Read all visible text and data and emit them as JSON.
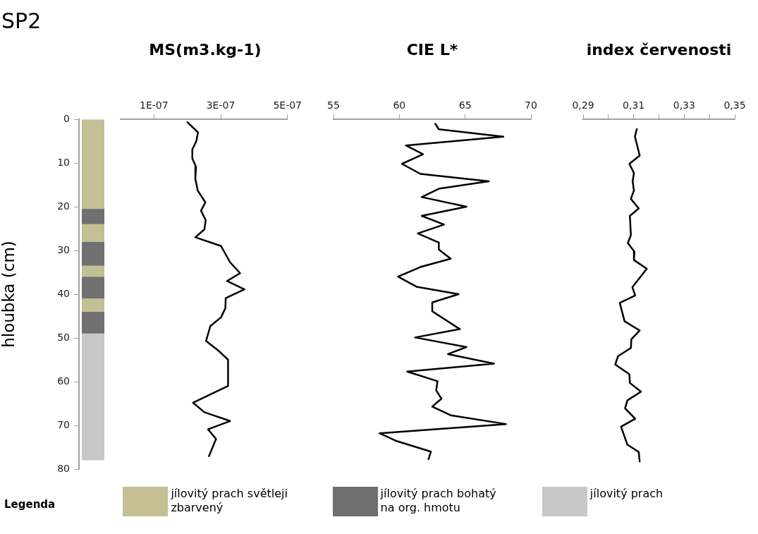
{
  "chart_data": [
    {
      "type": "bar",
      "title": "SP2",
      "ylabel": "hloubka (cm)",
      "categories": [
        null
      ],
      "stacked": true,
      "ylim": [
        80,
        0
      ],
      "yticks": [
        0,
        10,
        20,
        30,
        40,
        50,
        60,
        70,
        80
      ],
      "tick_labels": "y",
      "legend": "bottom",
      "legend_title": "Legenda",
      "series": [
        {
          "name": "jílovitý prach světleji zbarvený",
          "color": "#c4bf94",
          "values": [
            20.5
          ]
        },
        {
          "name": "jílovitý prach bohatý na org. hmotu",
          "color": "#707070",
          "values": [
            3.5
          ]
        },
        {
          "color": "#c4bf94",
          "values": [
            4
          ]
        },
        {
          "color": "#707070",
          "values": [
            5.5
          ]
        },
        {
          "color": "#c4bf94",
          "values": [
            2.5
          ]
        },
        {
          "color": "#707070",
          "values": [
            5
          ]
        },
        {
          "color": "#c4bf94",
          "values": [
            3
          ]
        },
        {
          "color": "#707070",
          "values": [
            5
          ]
        },
        {
          "name": "jílovitý prach",
          "color": "#c8c8c8",
          "values": [
            29
          ]
        }
      ]
    },
    {
      "type": "line",
      "title": "MS(m3.kg-1)",
      "xlim": [
        0,
        5e-07
      ],
      "xticks": [
        {
          "value": 1e-07,
          "label": "1E-07"
        },
        {
          "value": 3e-07,
          "label": "3E-07"
        },
        {
          "value": 5e-07,
          "label": "5E-07"
        }
      ],
      "ylim": [
        80,
        0
      ],
      "tick_labels": "x",
      "marker": "none",
      "line_style": "solid",
      "series": [
        {
          "color": "#000000",
          "x": [
            1.99e-07,
            2.32e-07,
            2.27e-07,
            2.15e-07,
            2.15e-07,
            2.26e-07,
            2.24e-07,
            2.31e-07,
            2.54e-07,
            2.41e-07,
            2.55e-07,
            2.51e-07,
            2.24e-07,
            3.01e-07,
            3.28e-07,
            3.58e-07,
            3.19e-07,
            3.71e-07,
            3.15e-07,
            3.14e-07,
            3.01e-07,
            2.69e-07,
            2.56e-07,
            2.93e-07,
            3.22e-07,
            3.22e-07,
            2.17e-07,
            2.51e-07,
            3.28e-07,
            2.62e-07,
            2.86e-07,
            2.64e-07
          ],
          "values": [
            0.6,
            3,
            5,
            6.9,
            9,
            10.9,
            13.6,
            16.3,
            19,
            20.9,
            23.1,
            25.2,
            27,
            29,
            32.7,
            35.2,
            37,
            38.9,
            40.9,
            43.2,
            45.3,
            47.3,
            50.7,
            52.9,
            55,
            61,
            64.8,
            67,
            69,
            70.9,
            73.1,
            77.2
          ]
        }
      ]
    },
    {
      "type": "line",
      "title": "CIE L*",
      "xlim": [
        55,
        70
      ],
      "xticks": [
        55,
        60,
        65,
        70
      ],
      "ylim": [
        80,
        0
      ],
      "tick_labels": "x",
      "marker": "none",
      "line_style": "solid",
      "series": [
        {
          "color": "#000000",
          "x": [
            62.7,
            63.0,
            67.9,
            60.5,
            61.8,
            60.2,
            61.6,
            66.8,
            63.0,
            61.7,
            65.1,
            61.7,
            63.4,
            61.4,
            63.0,
            63.0,
            63.9,
            61.6,
            59.9,
            61.3,
            64.5,
            62.5,
            62.5,
            64.6,
            61.2,
            65.1,
            63.7,
            67.2,
            60.6,
            62.9,
            62.8,
            63.2,
            62.5,
            63.9,
            68.1,
            58.5,
            59.8,
            62.4,
            62.2
          ],
          "values": [
            0.9,
            2.3,
            4,
            6,
            8,
            10.2,
            12.5,
            14.2,
            15.9,
            17.8,
            20,
            22.1,
            24.1,
            26.1,
            28.2,
            29.8,
            31.9,
            33.8,
            36,
            38.3,
            40,
            41.9,
            43.9,
            48,
            49.9,
            52.1,
            53.7,
            55.9,
            57.7,
            59.9,
            62,
            63.9,
            65.7,
            67.7,
            69.7,
            71.8,
            73.6,
            76,
            77.9
          ]
        }
      ]
    },
    {
      "type": "line",
      "title": "index červenosti",
      "xlim": [
        0.29,
        0.35
      ],
      "xticks": [
        {
          "value": 0.29,
          "label": "0,29"
        },
        {
          "value": 0.3,
          "label": null
        },
        {
          "value": 0.31,
          "label": "0,31"
        },
        {
          "value": 0.32,
          "label": null
        },
        {
          "value": 0.33,
          "label": "0,33"
        },
        {
          "value": 0.34,
          "label": null
        },
        {
          "value": 0.35,
          "label": "0,35"
        }
      ],
      "ylim": [
        80,
        0
      ],
      "tick_labels": "x",
      "marker": "none",
      "line_style": "solid",
      "series": [
        {
          "color": "#000000",
          "x": [
            0.3113,
            0.3105,
            0.3124,
            0.3083,
            0.3101,
            0.3096,
            0.3101,
            0.3089,
            0.312,
            0.3085,
            0.3089,
            0.3077,
            0.3103,
            0.3101,
            0.3152,
            0.3095,
            0.3106,
            0.3045,
            0.3064,
            0.3124,
            0.3091,
            0.3089,
            0.3038,
            0.3027,
            0.3083,
            0.3085,
            0.3129,
            0.3075,
            0.3066,
            0.3106,
            0.305,
            0.3075,
            0.312,
            0.3124
          ],
          "values": [
            2.1,
            4,
            8.3,
            10.2,
            12.3,
            14.2,
            16.3,
            18.2,
            20.4,
            22.1,
            26.5,
            28.3,
            30.3,
            32.2,
            34.2,
            38.4,
            40.3,
            42,
            46.2,
            48.3,
            50.3,
            52.3,
            54.2,
            56.1,
            58.3,
            60.3,
            62.3,
            64.3,
            66.1,
            68.5,
            70.3,
            74.4,
            76.1,
            78.4
          ]
        }
      ]
    }
  ]
}
